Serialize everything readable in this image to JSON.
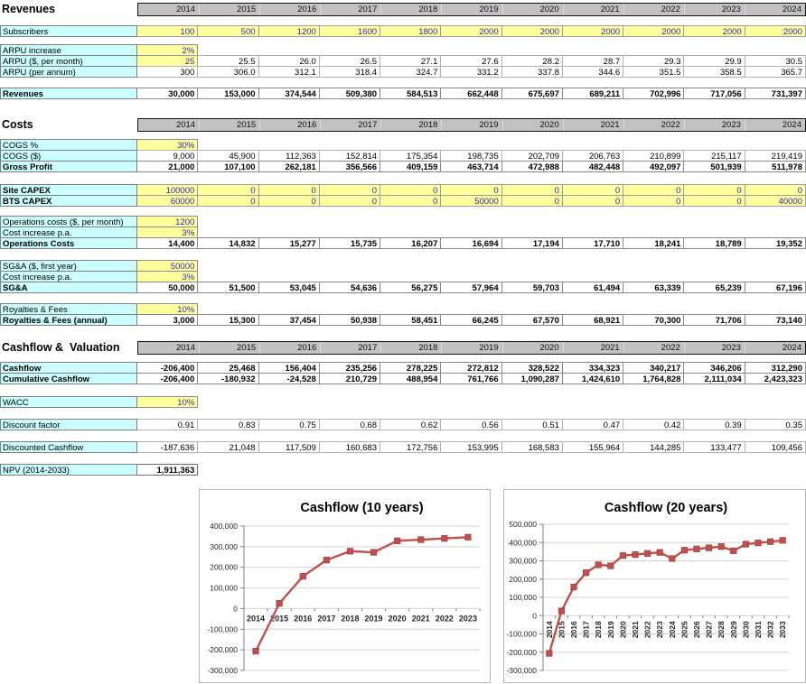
{
  "sheet": {
    "years": [
      "2014",
      "2015",
      "2016",
      "2017",
      "2018",
      "2019",
      "2020",
      "2021",
      "2022",
      "2023",
      "2024"
    ],
    "sections": [
      {
        "title": "Revenues",
        "rows": [
          {
            "id": "subscribers",
            "label": "Subscribers",
            "type": "input-all",
            "values": [
              "100",
              "500",
              "1200",
              "1600",
              "1800",
              "2000",
              "2000",
              "2000",
              "2000",
              "2000",
              "2000"
            ]
          },
          {
            "id": "arpu_increase",
            "label": "ARPU increase",
            "type": "input-first",
            "values": [
              "2%"
            ]
          },
          {
            "id": "arpu_month",
            "label": "ARPU ($, per month)",
            "type": "calc",
            "first_input": true,
            "values": [
              "25",
              "25.5",
              "26.0",
              "26.5",
              "27.1",
              "27.6",
              "28.2",
              "28.7",
              "29.3",
              "29.9",
              "30.5"
            ]
          },
          {
            "id": "arpu_annum",
            "label": "ARPU (per annum)",
            "type": "calc",
            "values": [
              "300",
              "306.0",
              "312.1",
              "318.4",
              "324.7",
              "331.2",
              "337.8",
              "344.6",
              "351.5",
              "358.5",
              "365.7"
            ]
          },
          {
            "id": "revenues_total",
            "label": "Revenues",
            "type": "total",
            "values": [
              "30,000",
              "153,000",
              "374,544",
              "509,380",
              "584,513",
              "662,448",
              "675,697",
              "689,211",
              "702,996",
              "717,056",
              "731,397"
            ]
          }
        ]
      },
      {
        "title": "Costs",
        "rows": [
          {
            "id": "cogs_pct",
            "label": "COGS %",
            "type": "input-first",
            "values": [
              "30%"
            ]
          },
          {
            "id": "cogs_usd",
            "label": "COGS ($)",
            "type": "calc",
            "values": [
              "9,000",
              "45,900",
              "112,363",
              "152,814",
              "175,354",
              "198,735",
              "202,709",
              "206,763",
              "210,899",
              "215,117",
              "219,419"
            ]
          },
          {
            "id": "gross_profit",
            "label": "Gross Profit",
            "type": "total",
            "values": [
              "21,000",
              "107,100",
              "262,181",
              "356,566",
              "409,159",
              "463,714",
              "472,988",
              "482,448",
              "492,097",
              "501,939",
              "511,978"
            ]
          },
          {
            "id": "site_capex",
            "label": "Site CAPEX",
            "type": "input-all",
            "label_bold": true,
            "values": [
              "100000",
              "0",
              "0",
              "0",
              "0",
              "0",
              "0",
              "0",
              "0",
              "0",
              "0"
            ]
          },
          {
            "id": "bts_capex",
            "label": "BTS CAPEX",
            "type": "input-all",
            "label_bold": true,
            "values": [
              "60000",
              "0",
              "0",
              "0",
              "0",
              "50000",
              "0",
              "0",
              "0",
              "0",
              "40000"
            ]
          },
          {
            "id": "ops_cost_input",
            "label": "Operations costs ($, per month)",
            "type": "input-first",
            "values": [
              "1200"
            ]
          },
          {
            "id": "ops_cost_increase",
            "label": "Cost increase p.a.",
            "type": "input-first",
            "values": [
              "3%"
            ]
          },
          {
            "id": "ops_costs",
            "label": "Operations Costs",
            "type": "total",
            "values": [
              "14,400",
              "14,832",
              "15,277",
              "15,735",
              "16,207",
              "16,694",
              "17,194",
              "17,710",
              "18,241",
              "18,789",
              "19,352"
            ]
          },
          {
            "id": "sga_input",
            "label": "SG&A ($, first year)",
            "type": "input-first",
            "values": [
              "50000"
            ]
          },
          {
            "id": "sga_increase",
            "label": "Cost increase p.a.",
            "type": "input-first",
            "values": [
              "3%"
            ]
          },
          {
            "id": "sga",
            "label": "SG&A",
            "type": "total",
            "values": [
              "50,000",
              "51,500",
              "53,045",
              "54,636",
              "56,275",
              "57,964",
              "59,703",
              "61,494",
              "63,339",
              "65,239",
              "67,196"
            ]
          },
          {
            "id": "royalties_pct",
            "label": "Royalties & Fees",
            "type": "input-first",
            "values": [
              "10%"
            ]
          },
          {
            "id": "royalties_annual",
            "label": "Royalties & Fees (annual)",
            "type": "total",
            "values": [
              "3,000",
              "15,300",
              "37,454",
              "50,938",
              "58,451",
              "66,245",
              "67,570",
              "68,921",
              "70,300",
              "71,706",
              "73,140"
            ]
          }
        ]
      },
      {
        "title": "Cashflow &  Valuation",
        "rows": [
          {
            "id": "cashflow",
            "label": "Cashflow",
            "type": "total",
            "values": [
              "-206,400",
              "25,468",
              "156,404",
              "235,256",
              "278,225",
              "272,812",
              "328,522",
              "334,323",
              "340,217",
              "346,206",
              "312,290"
            ]
          },
          {
            "id": "cumulative_cashflow",
            "label": "Cumulative Cashflow",
            "type": "total",
            "values": [
              "-206,400",
              "-180,932",
              "-24,528",
              "210,729",
              "488,954",
              "761,766",
              "1,090,287",
              "1,424,610",
              "1,764,828",
              "2,111,034",
              "2,423,323"
            ]
          },
          {
            "id": "wacc",
            "label": "WACC",
            "type": "input-first",
            "values": [
              "10%"
            ]
          },
          {
            "id": "discount_factor",
            "label": "Discount factor",
            "type": "calc",
            "values": [
              "0.91",
              "0.83",
              "0.75",
              "0.68",
              "0.62",
              "0.56",
              "0.51",
              "0.47",
              "0.42",
              "0.39",
              "0.35"
            ]
          },
          {
            "id": "discounted_cashflow",
            "label": "Discounted Cashflow",
            "type": "calc",
            "values": [
              "-187,636",
              "21,048",
              "117,509",
              "160,683",
              "172,756",
              "153,995",
              "168,583",
              "155,964",
              "144,285",
              "133,477",
              "109,456"
            ]
          },
          {
            "id": "npv",
            "label": "NPV (2014-2033)",
            "type": "npv",
            "values": [
              "1,911,363"
            ]
          }
        ]
      }
    ]
  },
  "colors": {
    "label_bg": "#ccffff",
    "input_bg": "#ffff9c",
    "input_text": "#2b2bbe",
    "year_band_bg": "#c2c2c2",
    "chart_line": "#c0504d",
    "chart_grid": "#d4d4d4",
    "chart_axis": "#808080"
  },
  "chart_data": [
    {
      "type": "line",
      "title": "Cashflow (10 years)",
      "categories": [
        "2014",
        "2015",
        "2016",
        "2017",
        "2018",
        "2019",
        "2020",
        "2021",
        "2022",
        "2023"
      ],
      "values": [
        -206400,
        25468,
        156404,
        235256,
        278225,
        272812,
        328522,
        334323,
        340217,
        346206
      ],
      "xlabel": "",
      "ylabel": "",
      "ylim": [
        -300000,
        400000
      ],
      "ytick": 100000,
      "grid": true,
      "legend": "none",
      "marker": "square",
      "x_label_rotation": 0,
      "line_color": "#c0504d"
    },
    {
      "type": "line",
      "title": "Cashflow (20 years)",
      "categories": [
        "2014",
        "2015",
        "2016",
        "2017",
        "2018",
        "2019",
        "2020",
        "2021",
        "2022",
        "2023",
        "2024",
        "2025",
        "2026",
        "2027",
        "2028",
        "2029",
        "2030",
        "2031",
        "2032",
        "2033"
      ],
      "values": [
        -206400,
        25468,
        156404,
        235256,
        278225,
        272812,
        328522,
        334323,
        340217,
        346206,
        312290,
        358000,
        365000,
        371000,
        378000,
        355000,
        391000,
        398000,
        405000,
        412000
      ],
      "xlabel": "",
      "ylabel": "",
      "ylim": [
        -300000,
        500000
      ],
      "ytick": 100000,
      "grid": true,
      "legend": "none",
      "marker": "square",
      "x_label_rotation": -90,
      "line_color": "#c0504d"
    }
  ]
}
